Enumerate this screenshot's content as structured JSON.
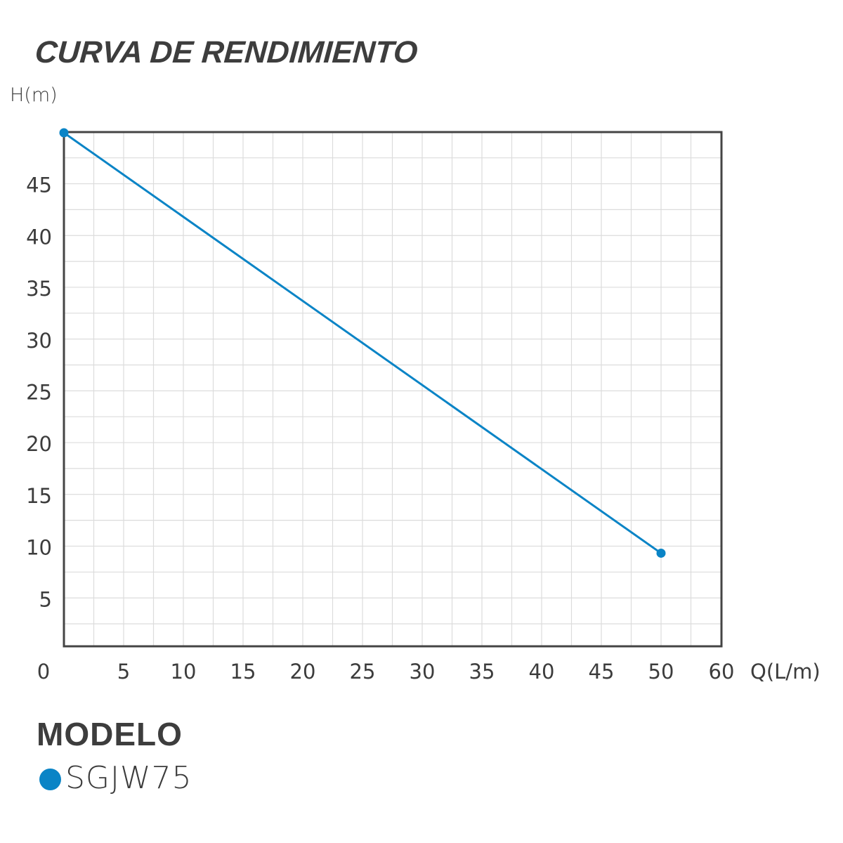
{
  "header": {
    "title": "CURVA DE RENDIMIENTO"
  },
  "axes": {
    "y_label": "H(m)",
    "x_label": "Q(L/m)"
  },
  "legend": {
    "title": "MODELO",
    "items": [
      {
        "label": "SGJW75",
        "color": "#0a84c6"
      }
    ]
  },
  "colors": {
    "series": "#0a84c6",
    "axis": "#444444",
    "grid": "#dcdcdc",
    "text": "#3c3c3c"
  },
  "chart_data": {
    "type": "line",
    "title": "CURVA DE RENDIMIENTO",
    "xlabel": "Q(L/m)",
    "ylabel": "H(m)",
    "x_ticks": [
      0,
      5,
      10,
      15,
      20,
      25,
      30,
      35,
      40,
      45,
      50,
      60
    ],
    "y_ticks": [
      5,
      10,
      15,
      20,
      25,
      30,
      35,
      40,
      45
    ],
    "xlim": [
      0,
      55
    ],
    "ylim": [
      0,
      50
    ],
    "grid": true,
    "legend_position": "bottom-left",
    "series": [
      {
        "name": "SGJW75",
        "color": "#0a84c6",
        "x": [
          0,
          50
        ],
        "y": [
          50,
          9.4
        ]
      }
    ]
  }
}
